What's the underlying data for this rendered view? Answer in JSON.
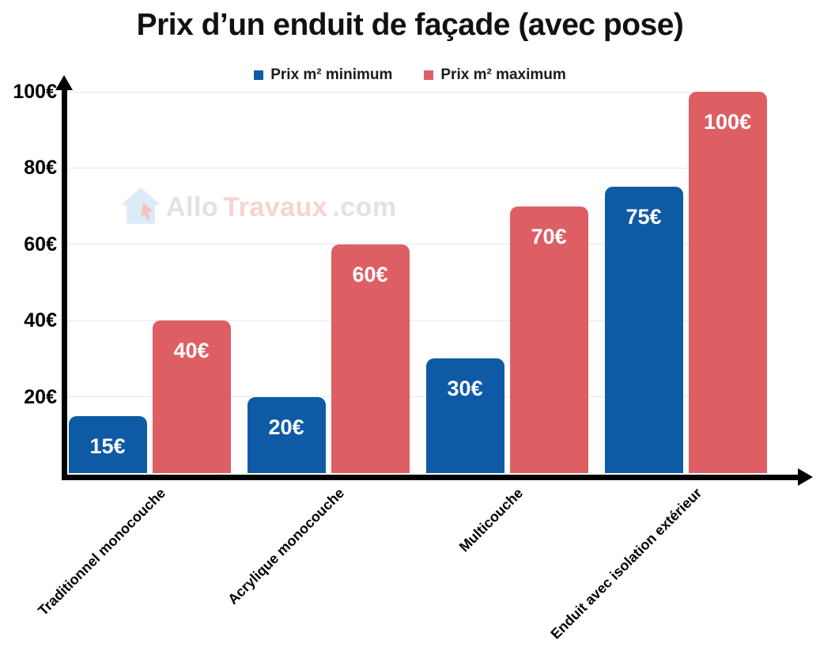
{
  "title": "Prix d’un enduit de façade (avec pose)",
  "watermark": {
    "allo": "Allo",
    "travaux": "Travaux",
    "com": ".com"
  },
  "chart_data": {
    "type": "bar",
    "title": "Prix d’un enduit de façade (avec pose)",
    "categories": [
      "Traditionnel monocouche",
      "Acrylique monocouche",
      "Multicouche",
      "Enduit avec isolation extérieur"
    ],
    "series": [
      {
        "name": "Prix m² minimum",
        "color": "#0e5aa5",
        "values": [
          15,
          20,
          30,
          75
        ],
        "labels": [
          "15€",
          "20€",
          "30€",
          "75€"
        ]
      },
      {
        "name": "Prix m² maximum",
        "color": "#dd5f64",
        "values": [
          40,
          60,
          70,
          100
        ],
        "labels": [
          "40€",
          "60€",
          "70€",
          "100€"
        ]
      }
    ],
    "value_suffix": "€",
    "xlabel": "",
    "ylabel": "",
    "ylim": [
      0,
      100
    ],
    "y_ticks": [
      20,
      40,
      60,
      80,
      100
    ],
    "y_tick_labels": [
      "20€",
      "40€",
      "60€",
      "80€",
      "100€"
    ],
    "grid": true,
    "legend_position": "top",
    "bar_style": "rounded-top",
    "data_label_color": "#ffffff",
    "axis_color": "#000000",
    "gridline_color": "#e7e7e7"
  }
}
